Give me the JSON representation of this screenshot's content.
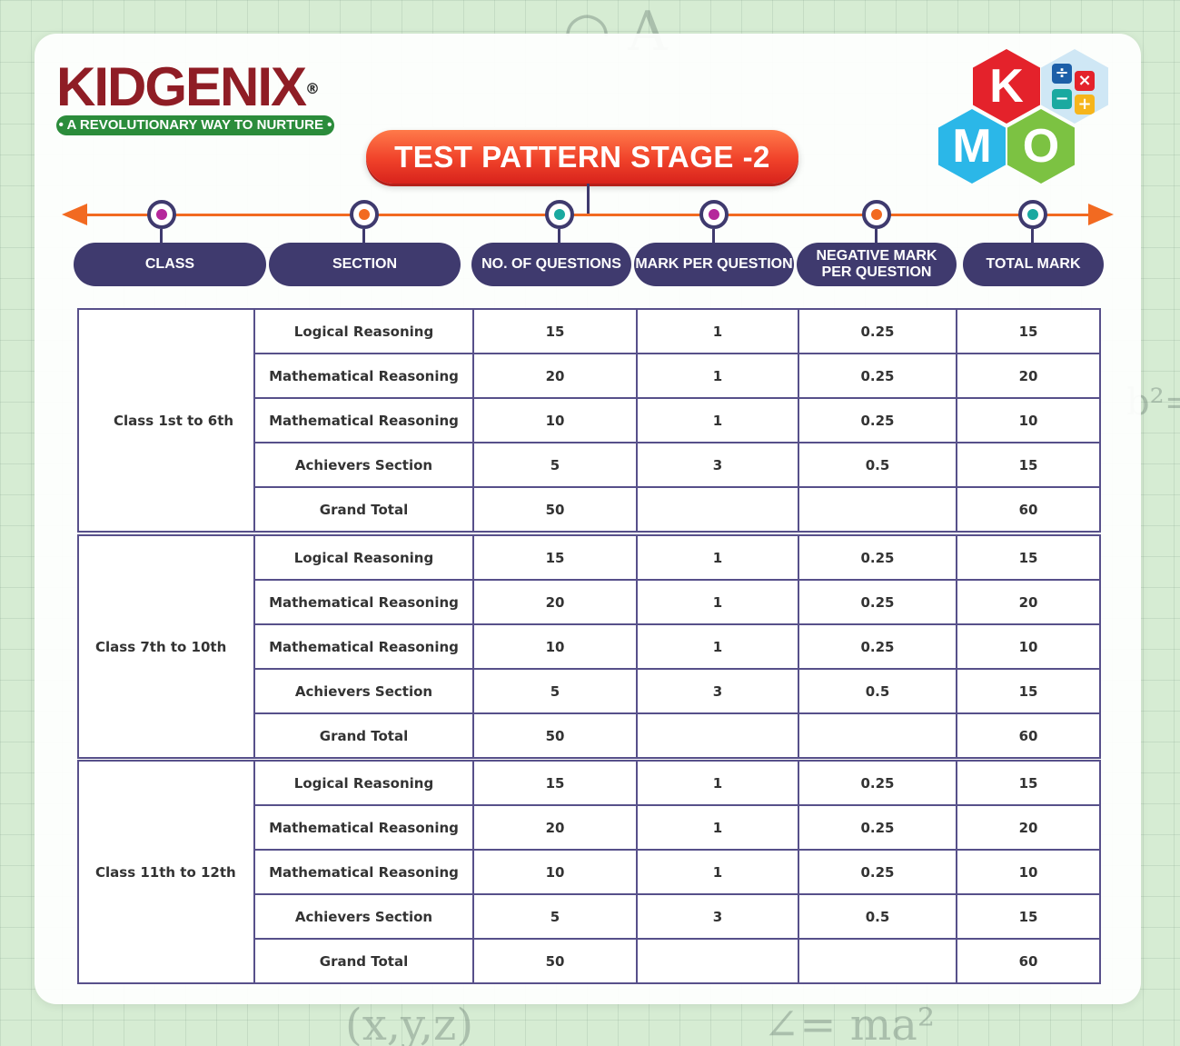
{
  "brand": {
    "name": "KIDGENIX",
    "registered": "®",
    "tagline": "• A REVOLUTIONARY WAY TO NURTURE •"
  },
  "badge": {
    "k": "K",
    "m": "M",
    "o": "O"
  },
  "title": "TEST PATTERN STAGE -2",
  "headers": {
    "class": "CLASS",
    "section": "SECTION",
    "questions": "NO. OF QUESTIONS",
    "mark": "MARK PER QUESTION",
    "negative_line1": "NEGATIVE MARK",
    "negative_line2": "PER QUESTION",
    "total": "TOTAL MARK"
  },
  "groups": [
    {
      "class": "Class 1st to 6th",
      "rows": [
        {
          "section": "Logical Reasoning",
          "questions": "15",
          "mark": "1",
          "negative": "0.25",
          "total": "15"
        },
        {
          "section": "Mathematical Reasoning",
          "questions": "20",
          "mark": "1",
          "negative": "0.25",
          "total": "20"
        },
        {
          "section": "Mathematical Reasoning",
          "questions": "10",
          "mark": "1",
          "negative": "0.25",
          "total": "10"
        },
        {
          "section": "Achievers Section",
          "questions": "5",
          "mark": "3",
          "negative": "0.5",
          "total": "15"
        },
        {
          "section": "Grand Total",
          "questions": "50",
          "mark": "",
          "negative": "",
          "total": "60"
        }
      ]
    },
    {
      "class": "Class 7th to 10th",
      "rows": [
        {
          "section": "Logical Reasoning",
          "questions": "15",
          "mark": "1",
          "negative": "0.25",
          "total": "15"
        },
        {
          "section": "Mathematical Reasoning",
          "questions": "20",
          "mark": "1",
          "negative": "0.25",
          "total": "20"
        },
        {
          "section": "Mathematical Reasoning",
          "questions": "10",
          "mark": "1",
          "negative": "0.25",
          "total": "10"
        },
        {
          "section": "Achievers Section",
          "questions": "5",
          "mark": "3",
          "negative": "0.5",
          "total": "15"
        },
        {
          "section": "Grand Total",
          "questions": "50",
          "mark": "",
          "negative": "",
          "total": "60"
        }
      ]
    },
    {
      "class": "Class 11th to 12th",
      "rows": [
        {
          "section": "Logical Reasoning",
          "questions": "15",
          "mark": "1",
          "negative": "0.25",
          "total": "15"
        },
        {
          "section": "Mathematical Reasoning",
          "questions": "20",
          "mark": "1",
          "negative": "0.25",
          "total": "20"
        },
        {
          "section": "Mathematical Reasoning",
          "questions": "10",
          "mark": "1",
          "negative": "0.25",
          "total": "10"
        },
        {
          "section": "Achievers Section",
          "questions": "5",
          "mark": "3",
          "negative": "0.5",
          "total": "15"
        },
        {
          "section": "Grand Total",
          "questions": "50",
          "mark": "",
          "negative": "",
          "total": "60"
        }
      ]
    }
  ],
  "colors": {
    "brand_red": "#8f1d25",
    "brand_green": "#2b8c3b",
    "navy": "#3f3a6e",
    "orange": "#f26a21",
    "node_magenta": "#b5279b",
    "node_orange": "#f26a21",
    "node_teal": "#1aa9a0"
  },
  "icons": [
    "divide-icon",
    "multiply-icon",
    "minus-icon",
    "plus-icon"
  ]
}
